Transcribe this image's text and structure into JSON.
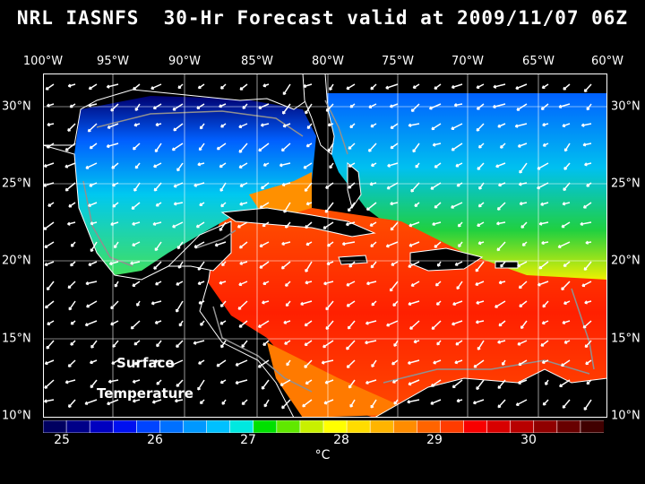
{
  "title": "NRL IASNFS  30-Hr Forecast valid at 2009/11/07 06Z",
  "lon_labels": [
    "100°W",
    "95°W",
    "90°W",
    "85°W",
    "80°W",
    "75°W",
    "70°W",
    "65°W",
    "60°W"
  ],
  "lat_labels": [
    "30°N",
    "25°N",
    "20°N",
    "15°N",
    "10°N"
  ],
  "overlay": {
    "line1": "Surface",
    "line2": "Temperature"
  },
  "colorbar": {
    "ticks": [
      "25",
      "26",
      "27",
      "28",
      "29",
      "30"
    ],
    "unit": "°C",
    "colors": [
      "#000060",
      "#000088",
      "#0000c0",
      "#0010f0",
      "#0044ff",
      "#0070ff",
      "#0098ff",
      "#00c0ff",
      "#00e8e0",
      "#00e000",
      "#60e800",
      "#c8f000",
      "#ffff00",
      "#ffdc00",
      "#ffb400",
      "#ff8c00",
      "#ff6400",
      "#ff3c00",
      "#f80000",
      "#d80000",
      "#b80000",
      "#900000",
      "#680000",
      "#400000"
    ]
  }
}
